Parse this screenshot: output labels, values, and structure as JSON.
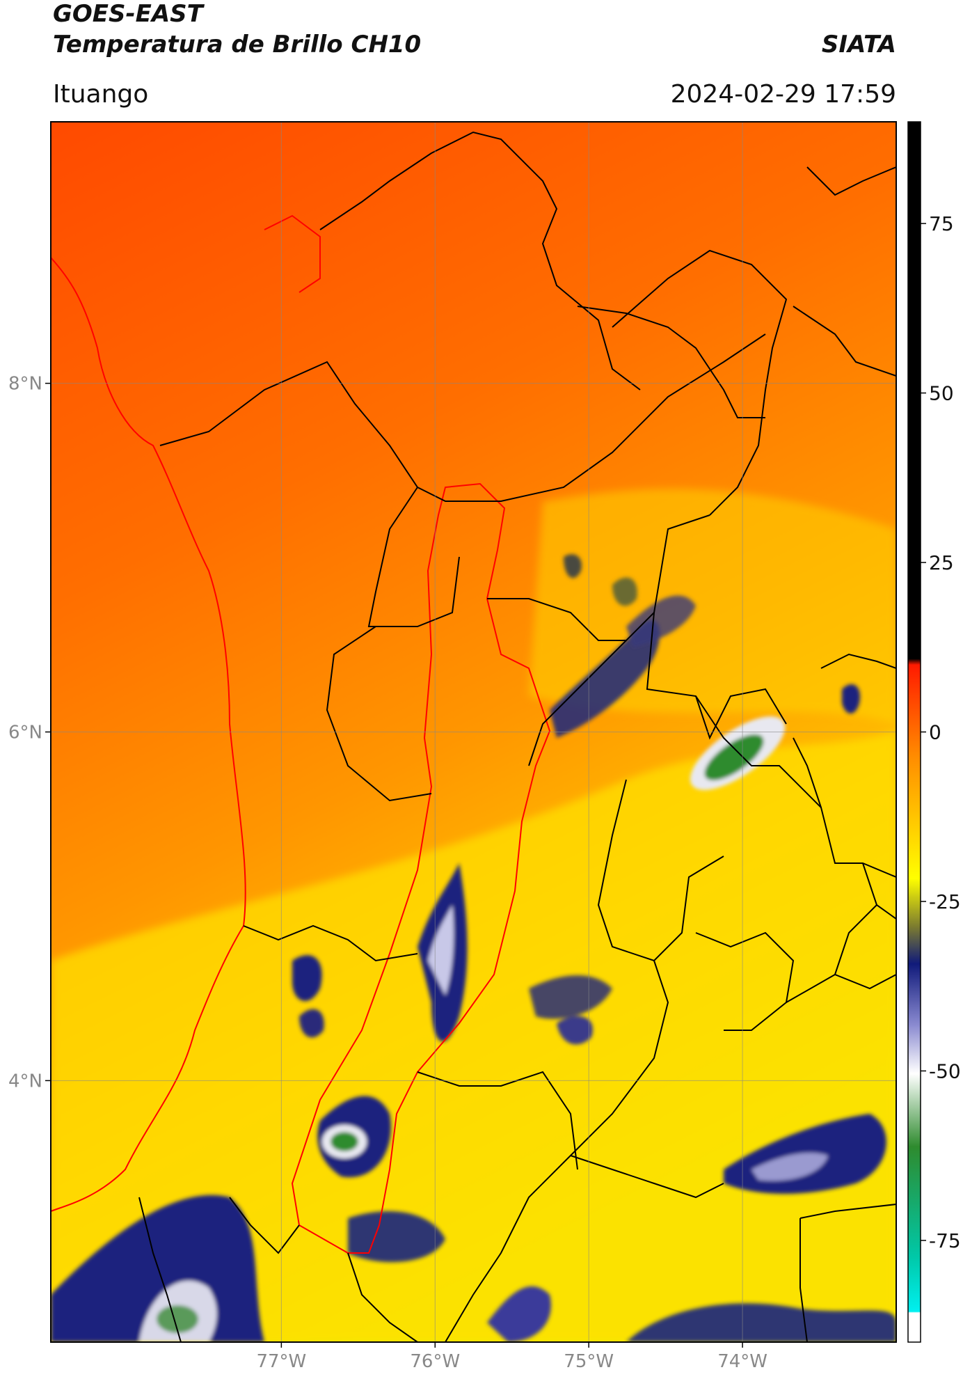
{
  "header": {
    "satellite": "GOES-EAST",
    "product": "Temperatura de Brillo CH10",
    "organization": "SIATA",
    "location": "Ituango",
    "datetime": "2024-02-29 17:59"
  },
  "map": {
    "lon_range": [
      -78.5,
      -73
    ],
    "lat_range": [
      2.5,
      9.5
    ],
    "lat_ticks": [
      {
        "value": 8,
        "label": "8°N"
      },
      {
        "value": 6,
        "label": "6°N"
      },
      {
        "value": 4,
        "label": "4°N"
      }
    ],
    "lon_ticks": [
      {
        "value": -77,
        "label": "77°W"
      },
      {
        "value": -76,
        "label": "76°W"
      },
      {
        "value": -75,
        "label": "75°W"
      },
      {
        "value": -74,
        "label": "74°W"
      }
    ],
    "gridlines": true
  },
  "colorbar": {
    "range": [
      -90,
      90
    ],
    "ticks": [
      {
        "value": 75,
        "label": "75"
      },
      {
        "value": 50,
        "label": "50"
      },
      {
        "value": 25,
        "label": "25"
      },
      {
        "value": 0,
        "label": "0"
      },
      {
        "value": -25,
        "label": "-25"
      },
      {
        "value": -50,
        "label": "-50"
      },
      {
        "value": -75,
        "label": "-75"
      }
    ],
    "colors": {
      "black": "#000000",
      "red": "#ff1a00",
      "orange": "#ff8c00",
      "yellow": "#ffff00",
      "navy": "#101a7a",
      "white": "#ffffff",
      "green": "#2e8b2e",
      "cyan": "#00e6e6"
    }
  }
}
